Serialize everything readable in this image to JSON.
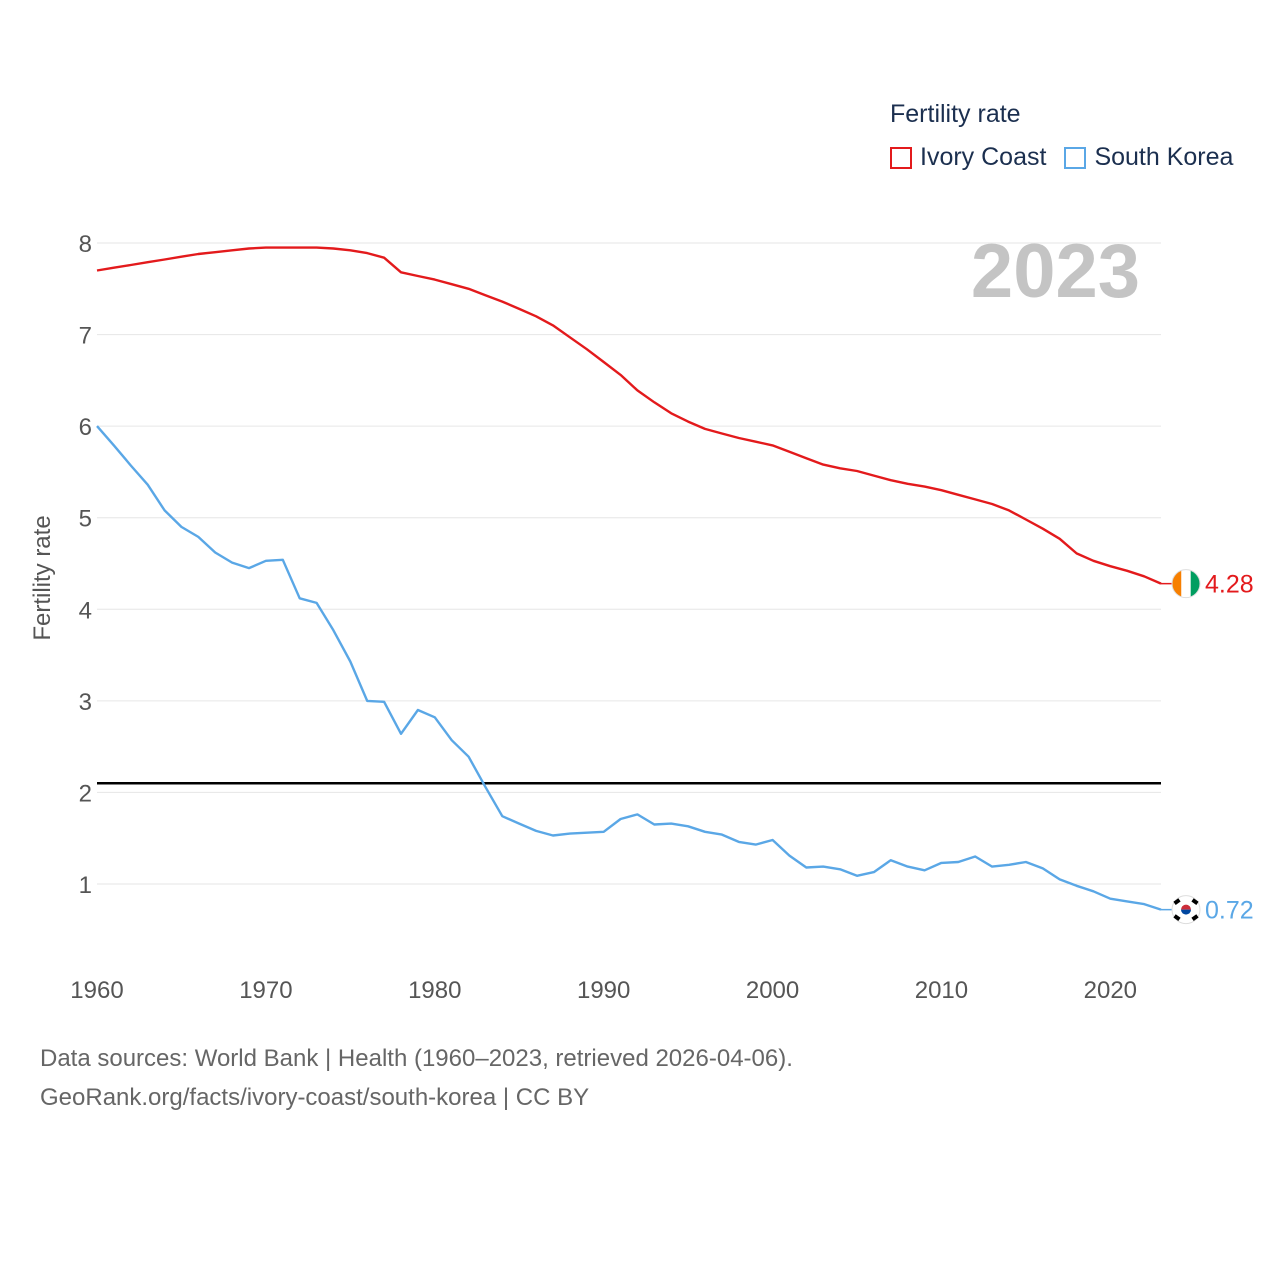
{
  "legend": {
    "title": "Fertility rate",
    "items": [
      {
        "label": "Ivory Coast",
        "color": "#e31a1c"
      },
      {
        "label": "South Korea",
        "color": "#5aa7e6"
      }
    ]
  },
  "year_label": "2023",
  "footer": {
    "line1": "Data sources: World Bank | Health (1960–2023, retrieved 2026-04-06).",
    "line2": "GeoRank.org/facts/ivory-coast/south-korea | CC BY"
  },
  "chart_data": {
    "type": "line",
    "ylabel": "Fertility rate",
    "xlabel": "",
    "xlim": [
      1960,
      2023
    ],
    "ylim": [
      0.3,
      8.2
    ],
    "yticks": [
      1,
      2,
      3,
      4,
      5,
      6,
      7,
      8
    ],
    "xticks": [
      1960,
      1970,
      1980,
      1990,
      2000,
      2010,
      2020
    ],
    "reference_line": {
      "y": 2.1,
      "color": "#000000"
    },
    "series": [
      {
        "name": "Ivory Coast",
        "color": "#e31a1c",
        "end_label": "4.28",
        "flag": "ivory-coast-flag",
        "x": [
          1960,
          1961,
          1962,
          1963,
          1964,
          1965,
          1966,
          1967,
          1968,
          1969,
          1970,
          1971,
          1972,
          1973,
          1974,
          1975,
          1976,
          1977,
          1978,
          1979,
          1980,
          1981,
          1982,
          1983,
          1984,
          1985,
          1986,
          1987,
          1988,
          1989,
          1990,
          1991,
          1992,
          1993,
          1994,
          1995,
          1996,
          1997,
          1998,
          1999,
          2000,
          2001,
          2002,
          2003,
          2004,
          2005,
          2006,
          2007,
          2008,
          2009,
          2010,
          2011,
          2012,
          2013,
          2014,
          2015,
          2016,
          2017,
          2018,
          2019,
          2020,
          2021,
          2022,
          2023
        ],
        "values": [
          7.7,
          7.73,
          7.76,
          7.79,
          7.82,
          7.85,
          7.88,
          7.9,
          7.92,
          7.94,
          7.95,
          7.95,
          7.95,
          7.95,
          7.94,
          7.92,
          7.89,
          7.84,
          7.68,
          7.64,
          7.6,
          7.55,
          7.5,
          7.43,
          7.36,
          7.28,
          7.2,
          7.1,
          6.97,
          6.84,
          6.7,
          6.56,
          6.39,
          6.26,
          6.14,
          6.05,
          5.97,
          5.92,
          5.87,
          5.83,
          5.79,
          5.72,
          5.65,
          5.58,
          5.54,
          5.51,
          5.46,
          5.41,
          5.37,
          5.34,
          5.3,
          5.25,
          5.2,
          5.15,
          5.08,
          4.98,
          4.88,
          4.77,
          4.61,
          4.53,
          4.47,
          4.42,
          4.36,
          4.28
        ]
      },
      {
        "name": "South Korea",
        "color": "#5aa7e6",
        "end_label": "0.72",
        "flag": "south-korea-flag",
        "x": [
          1960,
          1961,
          1962,
          1963,
          1964,
          1965,
          1966,
          1967,
          1968,
          1969,
          1970,
          1971,
          1972,
          1973,
          1974,
          1975,
          1976,
          1977,
          1978,
          1979,
          1980,
          1981,
          1982,
          1983,
          1984,
          1985,
          1986,
          1987,
          1988,
          1989,
          1990,
          1991,
          1992,
          1993,
          1994,
          1995,
          1996,
          1997,
          1998,
          1999,
          2000,
          2001,
          2002,
          2003,
          2004,
          2005,
          2006,
          2007,
          2008,
          2009,
          2010,
          2011,
          2012,
          2013,
          2014,
          2015,
          2016,
          2017,
          2018,
          2019,
          2020,
          2021,
          2022,
          2023
        ],
        "values": [
          6.0,
          5.79,
          5.57,
          5.36,
          5.08,
          4.9,
          4.79,
          4.62,
          4.51,
          4.45,
          4.53,
          4.54,
          4.12,
          4.07,
          3.77,
          3.43,
          3.0,
          2.99,
          2.64,
          2.9,
          2.82,
          2.57,
          2.39,
          2.06,
          1.74,
          1.66,
          1.58,
          1.53,
          1.55,
          1.56,
          1.57,
          1.71,
          1.76,
          1.65,
          1.66,
          1.63,
          1.57,
          1.54,
          1.46,
          1.43,
          1.48,
          1.31,
          1.18,
          1.19,
          1.16,
          1.09,
          1.13,
          1.26,
          1.19,
          1.15,
          1.23,
          1.24,
          1.3,
          1.19,
          1.21,
          1.24,
          1.17,
          1.05,
          0.98,
          0.92,
          0.84,
          0.81,
          0.78,
          0.72
        ]
      }
    ]
  }
}
